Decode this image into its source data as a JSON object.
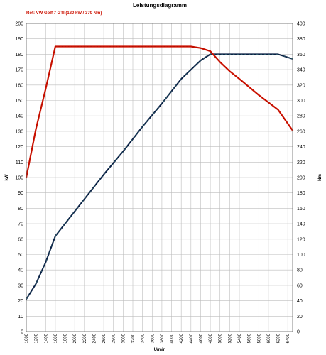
{
  "chart_data": {
    "type": "line",
    "title": "Leistungsdiagramm",
    "subtitle": "Rot: VW Golf 7 GTI (180 kW / 370 Nm)",
    "xlabel": "U/min",
    "ylabel_left": "kW",
    "ylabel_right": "Nm",
    "x_ticks": [
      1000,
      1200,
      1400,
      1600,
      1800,
      2000,
      2200,
      2400,
      2600,
      2800,
      3000,
      3200,
      3400,
      3600,
      3800,
      4000,
      4200,
      4400,
      4600,
      4800,
      5000,
      5200,
      5400,
      5600,
      5800,
      6000,
      6200,
      6400
    ],
    "xlim": [
      1000,
      6500
    ],
    "ylim_left": [
      0,
      200
    ],
    "ylim_right": [
      0,
      400
    ],
    "yticks_left": [
      0,
      10,
      20,
      30,
      40,
      50,
      60,
      70,
      80,
      90,
      100,
      110,
      120,
      130,
      140,
      150,
      160,
      170,
      180,
      190,
      200
    ],
    "yticks_right": [
      0,
      20,
      40,
      60,
      80,
      100,
      120,
      140,
      160,
      180,
      200,
      220,
      240,
      260,
      280,
      300,
      320,
      340,
      360,
      380,
      400
    ],
    "grid": true,
    "colors": {
      "power": "#0a1f44",
      "torque": "#cc1100",
      "subtitle": "#cc1100"
    },
    "series": [
      {
        "axis": "left",
        "style": "dashed",
        "x": [
          1000,
          1200,
          1400,
          1600,
          1800,
          2200,
          2600,
          3000,
          3400,
          3800,
          4200,
          4600,
          4800,
          5000,
          5500,
          6000,
          6200,
          6500
        ],
        "values": [
          21,
          31,
          45,
          62,
          70,
          86,
          102,
          117,
          133,
          148,
          164,
          176,
          180,
          180,
          180,
          180,
          180,
          177
        ]
      },
      {
        "axis": "right",
        "style": "solid",
        "x": [
          1000,
          1200,
          1400,
          1600,
          1700,
          2000,
          3000,
          4000,
          4400,
          4600,
          4800,
          5000,
          5200,
          5400,
          5800,
          6200,
          6500
        ],
        "values": [
          200,
          263,
          315,
          370,
          370,
          370,
          370,
          370,
          370,
          368,
          364,
          350,
          338,
          328,
          307,
          288,
          261
        ]
      }
    ]
  }
}
